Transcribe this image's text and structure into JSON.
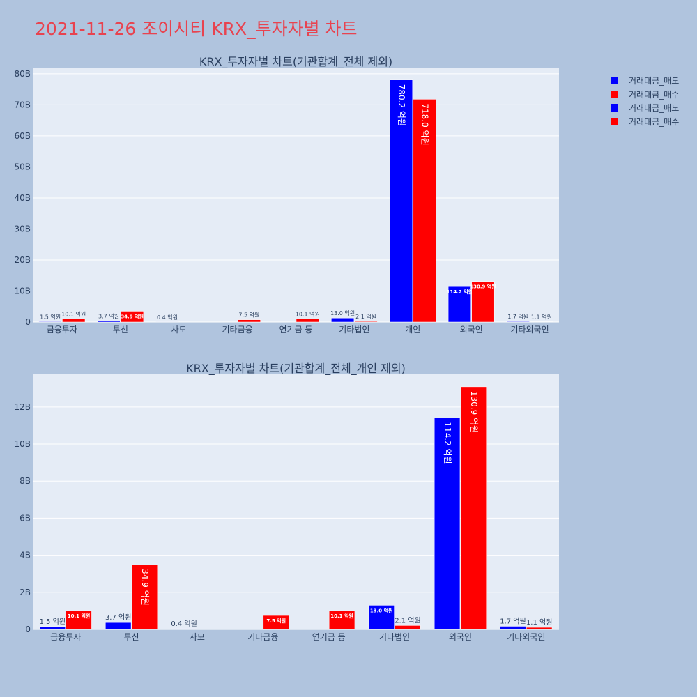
{
  "page_title": "2021-11-26 조이시티 KRX_투자자별 차트",
  "colors": {
    "sell": "#0000ff",
    "buy": "#ff0000",
    "plot_bg": "#e5ecf6",
    "page_bg": "#b0c4de",
    "title": "#e8434f"
  },
  "legend": [
    {
      "label": "거래대금_매도",
      "color": "#0000ff"
    },
    {
      "label": "거래대금_매수",
      "color": "#ff0000"
    },
    {
      "label": "거래대금_매도",
      "color": "#0000ff"
    },
    {
      "label": "거래대금_매수",
      "color": "#ff0000"
    }
  ],
  "chart_data": [
    {
      "type": "bar",
      "title": "KRX_투자자별 차트(기관합계_전체 제외)",
      "categories": [
        "금융투자",
        "투신",
        "사모",
        "기타금융",
        "연기금 등",
        "기타법인",
        "개인",
        "외국인",
        "기타외국인"
      ],
      "series": [
        {
          "name": "거래대금_매도",
          "color": "#0000ff",
          "values": [
            0.15,
            0.37,
            0.04,
            0,
            0,
            1.3,
            78.02,
            11.42,
            0.17
          ],
          "labels": [
            "1.5 억원",
            "3.7 억원",
            "0.4 억원",
            "",
            "",
            "13.0 억원",
            "780.2 억원",
            "114.2 억원",
            "1.7 억원"
          ]
        },
        {
          "name": "거래대금_매수",
          "color": "#ff0000",
          "values": [
            1.01,
            3.49,
            0,
            0.75,
            1.01,
            0.21,
            71.8,
            13.09,
            0.11
          ],
          "labels": [
            "10.1 억원",
            "34.9 억원",
            "",
            "7.5 억원",
            "10.1 억원",
            "2.1 억원",
            "718.0 억원",
            "130.9 억원",
            "1.1 억원"
          ]
        }
      ],
      "ylim": [
        0,
        82
      ],
      "yticks": [
        0,
        10,
        20,
        30,
        40,
        50,
        60,
        70,
        80
      ],
      "ytick_labels": [
        "0",
        "10B",
        "20B",
        "30B",
        "40B",
        "50B",
        "60B",
        "70B",
        "80B"
      ]
    },
    {
      "type": "bar",
      "title": "KRX_투자자별 차트(기관합계_전체_개인 제외)",
      "categories": [
        "금융투자",
        "투신",
        "사모",
        "기타금융",
        "연기금 등",
        "기타법인",
        "외국인",
        "기타외국인"
      ],
      "series": [
        {
          "name": "거래대금_매도",
          "color": "#0000ff",
          "values": [
            0.15,
            0.37,
            0.04,
            0,
            0,
            1.3,
            11.42,
            0.17
          ],
          "labels": [
            "1.5 억원",
            "3.7 억원",
            "0.4 억원",
            "",
            "",
            "13.0 억원",
            "114.2 억원",
            "1.7 억원"
          ]
        },
        {
          "name": "거래대금_매수",
          "color": "#ff0000",
          "values": [
            1.01,
            3.49,
            0,
            0.75,
            1.01,
            0.21,
            13.09,
            0.11
          ],
          "labels": [
            "10.1 억원",
            "34.9 억원",
            "",
            "7.5 억원",
            "10.1 억원",
            "2.1 억원",
            "130.9 억원",
            "1.1 억원"
          ]
        }
      ],
      "ylim": [
        0,
        13.8
      ],
      "yticks": [
        0,
        2,
        4,
        6,
        8,
        10,
        12
      ],
      "ytick_labels": [
        "0",
        "2B",
        "4B",
        "6B",
        "8B",
        "10B",
        "12B"
      ]
    }
  ]
}
